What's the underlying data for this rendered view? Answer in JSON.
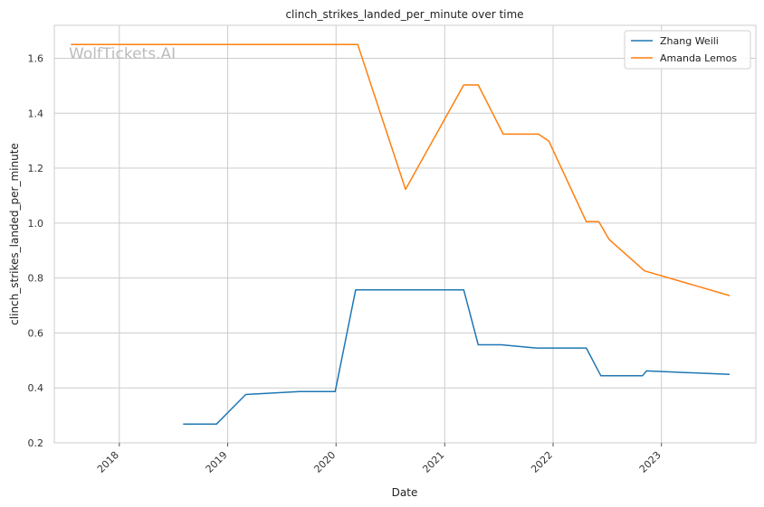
{
  "watermark": "WolfTickets.AI",
  "chart_data": {
    "type": "line",
    "title": "clinch_strikes_landed_per_minute over time",
    "xlabel": "Date",
    "ylabel": "clinch_strikes_landed_per_minute",
    "x_ticks": [
      "2018",
      "2019",
      "2020",
      "2021",
      "2022",
      "2023"
    ],
    "y_ticks": [
      "0.2",
      "0.4",
      "0.6",
      "0.8",
      "1.0",
      "1.2",
      "1.4",
      "1.6"
    ],
    "xlim": [
      "2017-05-27",
      "2023-11-15"
    ],
    "ylim": [
      0.2,
      1.72
    ],
    "grid": true,
    "legend_position": "top-right",
    "series": [
      {
        "name": "Zhang Weili",
        "color": "#1f77b4",
        "points": [
          {
            "x": "2018-08-04",
            "y": 0.268
          },
          {
            "x": "2018-11-24",
            "y": 0.268
          },
          {
            "x": "2019-03-03",
            "y": 0.376
          },
          {
            "x": "2019-08-31",
            "y": 0.387
          },
          {
            "x": "2019-12-29",
            "y": 0.387
          },
          {
            "x": "2020-03-07",
            "y": 0.757
          },
          {
            "x": "2021-03-06",
            "y": 0.757
          },
          {
            "x": "2021-04-24",
            "y": 0.557
          },
          {
            "x": "2021-07-10",
            "y": 0.557
          },
          {
            "x": "2021-11-06",
            "y": 0.545
          },
          {
            "x": "2022-04-23",
            "y": 0.545
          },
          {
            "x": "2022-06-11",
            "y": 0.444
          },
          {
            "x": "2022-10-29",
            "y": 0.444
          },
          {
            "x": "2022-11-12",
            "y": 0.462
          },
          {
            "x": "2023-08-19",
            "y": 0.449
          }
        ]
      },
      {
        "name": "Amanda Lemos",
        "color": "#ff7f0e",
        "points": [
          {
            "x": "2017-07-22",
            "y": 1.65
          },
          {
            "x": "2020-03-14",
            "y": 1.65
          },
          {
            "x": "2020-08-22",
            "y": 1.123
          },
          {
            "x": "2021-03-06",
            "y": 1.503
          },
          {
            "x": "2021-04-24",
            "y": 1.503
          },
          {
            "x": "2021-07-17",
            "y": 1.324
          },
          {
            "x": "2021-11-13",
            "y": 1.324
          },
          {
            "x": "2021-12-18",
            "y": 1.298
          },
          {
            "x": "2022-04-23",
            "y": 1.005
          },
          {
            "x": "2022-06-04",
            "y": 1.005
          },
          {
            "x": "2022-07-09",
            "y": 0.94
          },
          {
            "x": "2022-11-05",
            "y": 0.826
          },
          {
            "x": "2023-08-19",
            "y": 0.736
          }
        ]
      }
    ]
  }
}
